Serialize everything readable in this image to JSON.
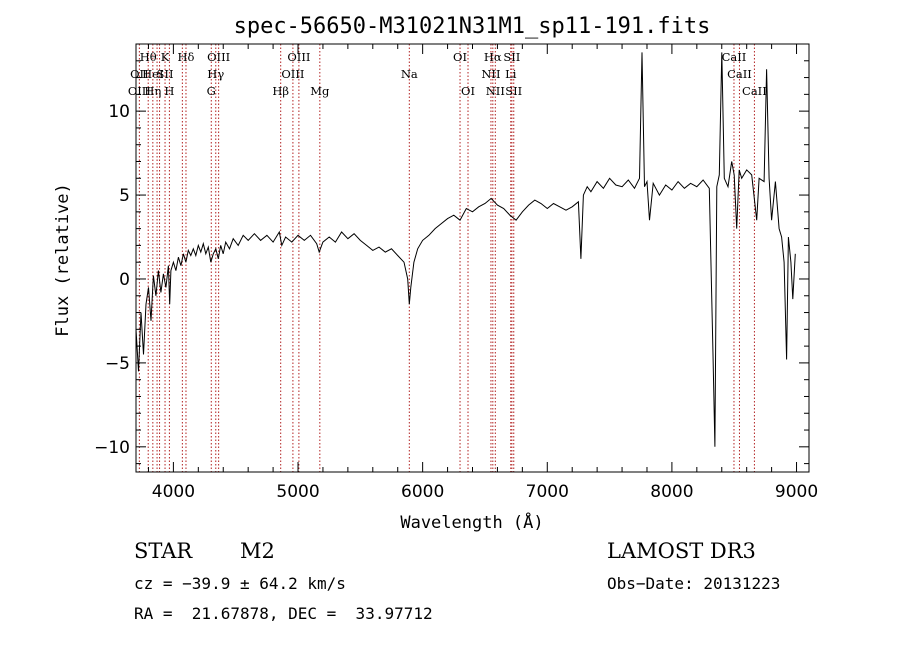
{
  "chart_data": {
    "type": "line",
    "title": "spec-56650-M31021N31M1_sp11-191.fits",
    "xlabel": "Wavelength (Å)",
    "ylabel": "Flux (relative)",
    "xlim": [
      3700,
      9100
    ],
    "ylim": [
      -11.5,
      14
    ],
    "xticks": [
      4000,
      5000,
      6000,
      7000,
      8000,
      9000
    ],
    "yticks": [
      -10,
      -5,
      0,
      5,
      10
    ],
    "grid": false,
    "series": [
      {
        "points": [
          [
            3700,
            -3.0
          ],
          [
            3720,
            -5.5
          ],
          [
            3740,
            -2.0
          ],
          [
            3760,
            -4.5
          ],
          [
            3780,
            -1.5
          ],
          [
            3800,
            -0.5
          ],
          [
            3820,
            -2.5
          ],
          [
            3840,
            0.2
          ],
          [
            3860,
            -1.0
          ],
          [
            3880,
            0.5
          ],
          [
            3900,
            -0.8
          ],
          [
            3920,
            0.3
          ],
          [
            3940,
            -0.5
          ],
          [
            3960,
            0.8
          ],
          [
            3970,
            -1.5
          ],
          [
            3980,
            0.5
          ],
          [
            4000,
            1.0
          ],
          [
            4020,
            0.5
          ],
          [
            4040,
            1.3
          ],
          [
            4060,
            0.8
          ],
          [
            4080,
            1.5
          ],
          [
            4100,
            1.0
          ],
          [
            4120,
            1.7
          ],
          [
            4140,
            1.4
          ],
          [
            4160,
            1.8
          ],
          [
            4180,
            1.4
          ],
          [
            4200,
            2.0
          ],
          [
            4220,
            1.6
          ],
          [
            4240,
            2.1
          ],
          [
            4260,
            1.5
          ],
          [
            4280,
            1.9
          ],
          [
            4300,
            1.0
          ],
          [
            4320,
            1.5
          ],
          [
            4340,
            1.8
          ],
          [
            4360,
            1.2
          ],
          [
            4380,
            2.0
          ],
          [
            4400,
            1.5
          ],
          [
            4420,
            2.2
          ],
          [
            4450,
            1.8
          ],
          [
            4480,
            2.4
          ],
          [
            4520,
            2.0
          ],
          [
            4560,
            2.6
          ],
          [
            4600,
            2.3
          ],
          [
            4650,
            2.7
          ],
          [
            4700,
            2.3
          ],
          [
            4750,
            2.6
          ],
          [
            4800,
            2.2
          ],
          [
            4850,
            2.8
          ],
          [
            4870,
            2.0
          ],
          [
            4900,
            2.5
          ],
          [
            4950,
            2.2
          ],
          [
            5000,
            2.6
          ],
          [
            5050,
            2.3
          ],
          [
            5100,
            2.6
          ],
          [
            5150,
            2.1
          ],
          [
            5170,
            1.6
          ],
          [
            5200,
            2.2
          ],
          [
            5250,
            2.5
          ],
          [
            5300,
            2.2
          ],
          [
            5350,
            2.8
          ],
          [
            5400,
            2.4
          ],
          [
            5450,
            2.7
          ],
          [
            5500,
            2.3
          ],
          [
            5550,
            2.0
          ],
          [
            5600,
            1.7
          ],
          [
            5650,
            1.9
          ],
          [
            5700,
            1.6
          ],
          [
            5750,
            1.8
          ],
          [
            5800,
            1.4
          ],
          [
            5850,
            1.0
          ],
          [
            5880,
            0.0
          ],
          [
            5893,
            -1.5
          ],
          [
            5905,
            -0.5
          ],
          [
            5930,
            1.0
          ],
          [
            5960,
            1.8
          ],
          [
            6000,
            2.3
          ],
          [
            6050,
            2.6
          ],
          [
            6100,
            3.0
          ],
          [
            6150,
            3.3
          ],
          [
            6200,
            3.6
          ],
          [
            6250,
            3.8
          ],
          [
            6300,
            3.5
          ],
          [
            6350,
            4.2
          ],
          [
            6400,
            4.0
          ],
          [
            6450,
            4.3
          ],
          [
            6500,
            4.5
          ],
          [
            6550,
            4.8
          ],
          [
            6600,
            4.4
          ],
          [
            6650,
            4.2
          ],
          [
            6700,
            3.8
          ],
          [
            6750,
            3.5
          ],
          [
            6800,
            4.0
          ],
          [
            6850,
            4.4
          ],
          [
            6900,
            4.7
          ],
          [
            6950,
            4.5
          ],
          [
            7000,
            4.2
          ],
          [
            7050,
            4.5
          ],
          [
            7100,
            4.3
          ],
          [
            7150,
            4.1
          ],
          [
            7200,
            4.3
          ],
          [
            7250,
            4.6
          ],
          [
            7270,
            1.2
          ],
          [
            7290,
            5.0
          ],
          [
            7320,
            5.5
          ],
          [
            7350,
            5.2
          ],
          [
            7400,
            5.8
          ],
          [
            7450,
            5.4
          ],
          [
            7500,
            6.0
          ],
          [
            7550,
            5.6
          ],
          [
            7600,
            5.5
          ],
          [
            7650,
            5.9
          ],
          [
            7700,
            5.4
          ],
          [
            7740,
            6.0
          ],
          [
            7760,
            13.5
          ],
          [
            7780,
            5.5
          ],
          [
            7800,
            5.8
          ],
          [
            7820,
            3.5
          ],
          [
            7850,
            5.7
          ],
          [
            7900,
            5.0
          ],
          [
            7950,
            5.6
          ],
          [
            8000,
            5.3
          ],
          [
            8050,
            5.8
          ],
          [
            8100,
            5.4
          ],
          [
            8150,
            5.7
          ],
          [
            8200,
            5.5
          ],
          [
            8250,
            5.9
          ],
          [
            8300,
            5.4
          ],
          [
            8330,
            -4.5
          ],
          [
            8345,
            -10.0
          ],
          [
            8360,
            5.5
          ],
          [
            8380,
            6.2
          ],
          [
            8400,
            13.5
          ],
          [
            8420,
            6.0
          ],
          [
            8450,
            5.5
          ],
          [
            8480,
            7.0
          ],
          [
            8500,
            6.2
          ],
          [
            8520,
            3.0
          ],
          [
            8540,
            6.5
          ],
          [
            8560,
            6.0
          ],
          [
            8600,
            6.5
          ],
          [
            8640,
            6.2
          ],
          [
            8680,
            3.5
          ],
          [
            8700,
            6.0
          ],
          [
            8740,
            5.8
          ],
          [
            8760,
            12.5
          ],
          [
            8780,
            6.0
          ],
          [
            8800,
            3.5
          ],
          [
            8830,
            5.8
          ],
          [
            8860,
            3.0
          ],
          [
            8880,
            2.5
          ],
          [
            8900,
            1.0
          ],
          [
            8920,
            -4.8
          ],
          [
            8935,
            2.5
          ],
          [
            8955,
            1.0
          ],
          [
            8970,
            -1.2
          ],
          [
            8990,
            1.5
          ]
        ]
      }
    ],
    "lines": [
      {
        "x": 3727,
        "labels": [
          "",
          "OII",
          "OIII"
        ]
      },
      {
        "x": 3798,
        "labels": [
          "Hθ",
          "",
          ""
        ]
      },
      {
        "x": 3835,
        "labels": [
          "",
          "HeI",
          "Hη"
        ]
      },
      {
        "x": 3869,
        "labels": [
          "",
          "",
          ""
        ]
      },
      {
        "x": 3889,
        "labels": [
          "",
          "",
          ""
        ]
      },
      {
        "x": 3933,
        "labels": [
          "K",
          "SII",
          ""
        ]
      },
      {
        "x": 3968,
        "labels": [
          "",
          "",
          "H"
        ]
      },
      {
        "x": 4072,
        "labels": [
          "",
          "",
          ""
        ]
      },
      {
        "x": 4101,
        "labels": [
          "Hδ",
          "",
          ""
        ]
      },
      {
        "x": 4304,
        "labels": [
          "",
          "",
          "G"
        ]
      },
      {
        "x": 4340,
        "labels": [
          "",
          "Hγ",
          ""
        ]
      },
      {
        "x": 4363,
        "labels": [
          "OIII",
          "",
          ""
        ]
      },
      {
        "x": 4861,
        "labels": [
          "",
          "",
          "Hβ"
        ]
      },
      {
        "x": 4959,
        "labels": [
          "",
          "OIII",
          ""
        ]
      },
      {
        "x": 5007,
        "labels": [
          "OIII",
          "",
          ""
        ]
      },
      {
        "x": 5175,
        "labels": [
          "",
          "",
          "Mg"
        ]
      },
      {
        "x": 5893,
        "labels": [
          "",
          "Na",
          ""
        ]
      },
      {
        "x": 6300,
        "labels": [
          "OI",
          "",
          ""
        ]
      },
      {
        "x": 6364,
        "labels": [
          "",
          "",
          "OI"
        ]
      },
      {
        "x": 6548,
        "labels": [
          "",
          "NII",
          ""
        ]
      },
      {
        "x": 6563,
        "labels": [
          "Hα",
          "",
          ""
        ]
      },
      {
        "x": 6583,
        "labels": [
          "",
          "",
          "NII"
        ]
      },
      {
        "x": 6707,
        "labels": [
          "",
          "Li",
          ""
        ]
      },
      {
        "x": 6716,
        "labels": [
          "SII",
          "",
          ""
        ]
      },
      {
        "x": 6731,
        "labels": [
          "",
          "",
          "SII"
        ]
      },
      {
        "x": 8498,
        "labels": [
          "CaII",
          "",
          ""
        ]
      },
      {
        "x": 8542,
        "labels": [
          "",
          "CaII",
          ""
        ]
      },
      {
        "x": 8662,
        "labels": [
          "",
          "",
          "CaII"
        ]
      }
    ]
  },
  "info": {
    "class": "STAR",
    "subclass": "M2",
    "survey": "LAMOST DR3",
    "cz": "cz = −39.9 ± 64.2 km/s",
    "obsdate": "Obs−Date: 20131223",
    "radec": "RA =  21.67878, DEC =  33.97712"
  }
}
